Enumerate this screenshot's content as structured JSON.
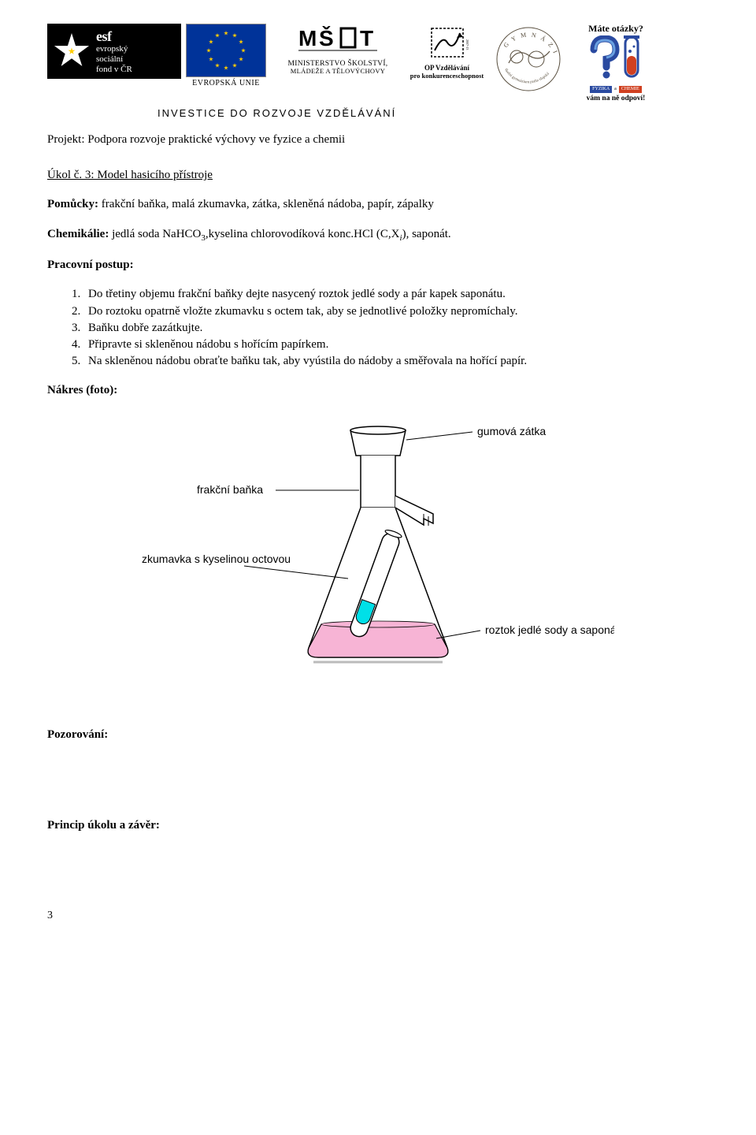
{
  "header": {
    "esf": {
      "abbr": "esf",
      "line1": "evropský",
      "line2": "sociální",
      "line3": "fond v ČR"
    },
    "eu_label": "EVROPSKÁ UNIE",
    "msmt": {
      "line1": "MINISTERSTVO ŠKOLSTVÍ,",
      "line2": "MLÁDEŽE A TĚLOVÝCHOVY"
    },
    "op": {
      "line1": "OP Vzdělávání",
      "line2": "pro konkurenceschopnost"
    },
    "otazky": {
      "title": "Máte otázky?",
      "box1": "FYZIKA",
      "conj": "a",
      "box2": "CHEMIE",
      "sub": "vám na ně odpoví!"
    },
    "tagline": "INVESTICE DO ROZVOJE VZDĚLÁVÁNÍ"
  },
  "project_line": "Projekt:  Podpora rozvoje praktické výchovy ve fyzice a chemii",
  "task_title": "Úkol č. 3: Model hasicího přístroje",
  "pomucky_label": "Pomůcky:",
  "pomucky_text": " frakční baňka, malá zkumavka, zátka, skleněná nádoba, papír, zápalky",
  "chem_label": "Chemikálie:",
  "chem_text_a": " jedlá soda NaHCO",
  "chem_sub_3": "3",
  "chem_text_b": ",kyselina chlorovodíková konc.HCl (C,X",
  "chem_sub_i": "i",
  "chem_text_c": "), saponát.",
  "postup_label": "Pracovní postup:",
  "steps": [
    "Do třetiny objemu frakční baňky dejte nasycený roztok jedlé sody a pár kapek saponátu.",
    "Do roztoku opatrně vložte zkumavku s octem tak, aby se jednotlivé položky nepromíchaly.",
    "Baňku dobře zazátkujte.",
    "Připravte si skleněnou nádobu s hořícím papírkem.",
    "Na skleněnou nádobu obraťte baňku tak, aby vyústila do nádoby a směřovala na hořící papír."
  ],
  "nakres_label": "Nákres (foto):",
  "diagram": {
    "type": "labeled-flask-diagram",
    "labels": {
      "stopper": "gumová zátka",
      "flask": "frakční baňka",
      "tube": "zkumavka s kyselinou octovou",
      "solution": "roztok jedlé sody a saponátu"
    },
    "colors": {
      "outline": "#000000",
      "solution_fill": "#f7b4d5",
      "tube_liquid": "#00e0e8",
      "label_font": "Arial"
    },
    "label_fontsize": 14
  },
  "pozorovani_label": "Pozorování:",
  "zaver_label": "Princip úkolu a závěr:",
  "page_number": "3"
}
